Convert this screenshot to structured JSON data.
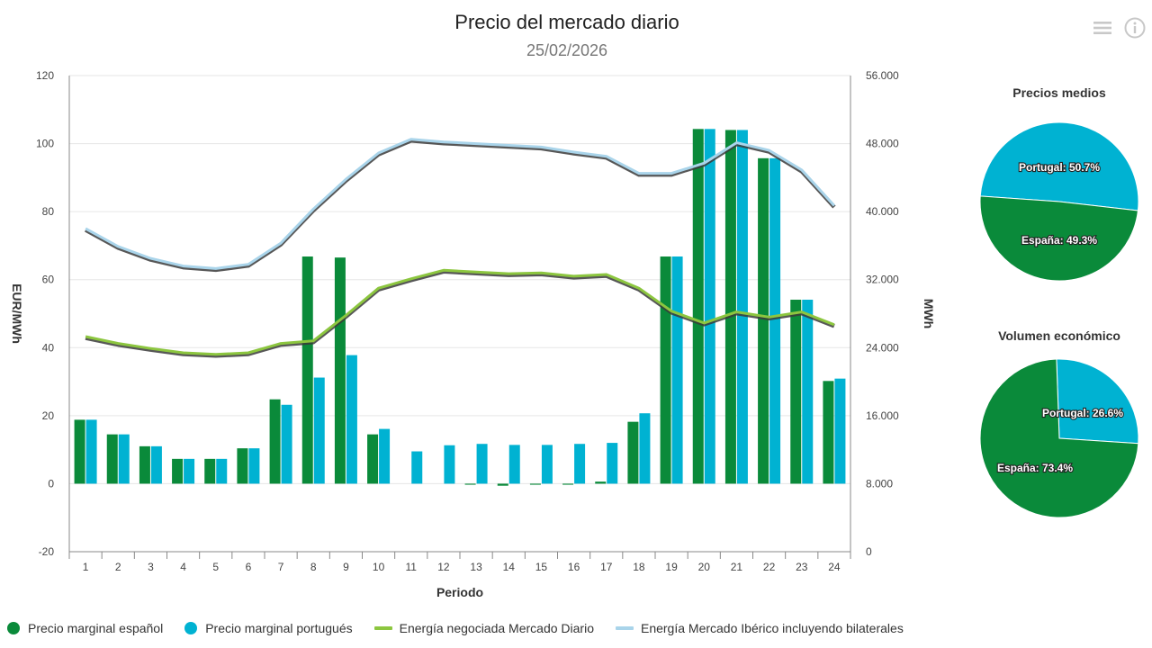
{
  "header": {
    "title": "Precio del mercado diario",
    "subtitle": "25/02/2026"
  },
  "toolbar": {
    "menu_icon": "hamburger-menu-icon",
    "info_icon": "info-icon"
  },
  "colors": {
    "spain": "#0a8a3a",
    "portugal": "#00b2d2",
    "energy_daily": "#8cc63f",
    "energy_iberian": "#a9d4ea",
    "line_shadow": "#3a3a3a",
    "grid": "#e6e6e6",
    "axis": "#888888"
  },
  "chart_data": [
    {
      "type": "bar",
      "title": "Precio del mercado diario",
      "subtitle": "25/02/2026",
      "xlabel": "Periodo",
      "ylabel": "EUR/MWh",
      "y2label": "MWh",
      "categories": [
        "1",
        "2",
        "3",
        "4",
        "5",
        "6",
        "7",
        "8",
        "9",
        "10",
        "11",
        "12",
        "13",
        "14",
        "15",
        "16",
        "17",
        "18",
        "19",
        "20",
        "21",
        "22",
        "23",
        "24"
      ],
      "ylim": [
        -20,
        120
      ],
      "y_ticks": [
        "-20",
        "0",
        "20",
        "40",
        "60",
        "80",
        "100",
        "120"
      ],
      "y2lim": [
        0,
        56000
      ],
      "y2_ticks": [
        "0",
        "8.000",
        "16.000",
        "24.000",
        "32.000",
        "40.000",
        "48.000",
        "56.000"
      ],
      "grid": true,
      "legend_position": "bottom",
      "series": [
        {
          "name": "Precio marginal español",
          "type": "bar",
          "axis": "left",
          "values": [
            18.8,
            14.5,
            11.0,
            7.3,
            7.3,
            10.4,
            24.8,
            66.8,
            66.5,
            14.5,
            0,
            0,
            -0.3,
            -0.6,
            -0.3,
            -0.3,
            0.6,
            18.2,
            66.8,
            104.3,
            104.0,
            95.7,
            54.1,
            30.2
          ]
        },
        {
          "name": "Precio marginal portugués",
          "type": "bar",
          "axis": "left",
          "values": [
            18.8,
            14.5,
            11.0,
            7.3,
            7.3,
            10.4,
            23.2,
            31.2,
            37.8,
            16.1,
            9.5,
            11.3,
            11.7,
            11.4,
            11.4,
            11.7,
            12.0,
            20.7,
            66.8,
            104.3,
            104.0,
            95.7,
            54.1,
            30.9
          ]
        },
        {
          "name": "Energía negociada Mercado Diario",
          "type": "line",
          "axis": "right",
          "values": [
            25300,
            24500,
            23900,
            23400,
            23200,
            23400,
            24500,
            24800,
            27800,
            31000,
            32100,
            33100,
            32900,
            32700,
            32800,
            32400,
            32600,
            31000,
            28300,
            26900,
            28200,
            27600,
            28200,
            26700
          ]
        },
        {
          "name": "Energía Mercado Ibérico incluyendo bilaterales",
          "type": "line",
          "axis": "right",
          "values": [
            38000,
            35900,
            34500,
            33600,
            33300,
            33800,
            36300,
            40300,
            43800,
            46900,
            48500,
            48200,
            48000,
            47800,
            47600,
            47000,
            46500,
            44500,
            44500,
            45700,
            48100,
            47200,
            44900,
            40700
          ]
        }
      ]
    },
    {
      "type": "pie",
      "title": "Precios medios",
      "slices": [
        {
          "name": "Portugal",
          "value": 50.7,
          "label": "Portugal: 50.7%"
        },
        {
          "name": "España",
          "value": 49.3,
          "label": "España: 49.3%"
        }
      ]
    },
    {
      "type": "pie",
      "title": "Volumen económico",
      "slices": [
        {
          "name": "Portugal",
          "value": 26.6,
          "label": "Portugal: 26.6%"
        },
        {
          "name": "España",
          "value": 73.4,
          "label": "España: 73.4%"
        }
      ]
    }
  ]
}
